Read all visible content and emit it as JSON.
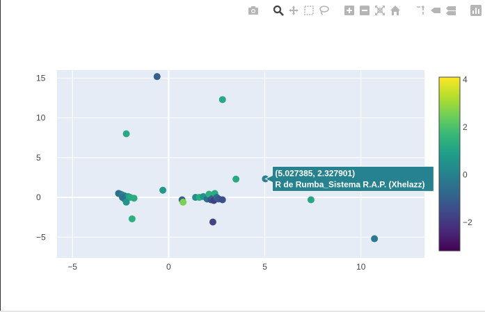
{
  "modebar": {
    "buttons": [
      {
        "name": "camera-icon",
        "title": "Download plot as a png"
      },
      {
        "name": "zoom-icon",
        "title": "Zoom"
      },
      {
        "name": "pan-icon",
        "title": "Pan"
      },
      {
        "name": "box-select-icon",
        "title": "Box Select"
      },
      {
        "name": "lasso-select-icon",
        "title": "Lasso Select"
      },
      {
        "name": "zoom-in-icon",
        "title": "Zoom in"
      },
      {
        "name": "zoom-out-icon",
        "title": "Zoom out"
      },
      {
        "name": "autoscale-icon",
        "title": "Autoscale"
      },
      {
        "name": "home-icon",
        "title": "Reset axes"
      },
      {
        "name": "spike-lines-icon",
        "title": "Toggle Spike Lines"
      },
      {
        "name": "hover-closest-icon",
        "title": "Show closest data on hover"
      },
      {
        "name": "hover-compare-icon",
        "title": "Compare data on hover"
      },
      {
        "name": "plotly-logo-icon",
        "title": "Produced with Plotly"
      }
    ]
  },
  "chart_data": {
    "type": "scatter",
    "xlim": [
      -5.8,
      13.3
    ],
    "ylim": [
      -7.6,
      16.0
    ],
    "x_ticks": [
      -5,
      0,
      5,
      10
    ],
    "y_ticks": [
      -5,
      0,
      5,
      10,
      15
    ],
    "grid": true,
    "colorscale": "viridis",
    "colorbar": {
      "range": [
        -3.2,
        4.1
      ],
      "ticks": [
        -2,
        0,
        2,
        4
      ],
      "stops": [
        "#440154",
        "#482878",
        "#3e4989",
        "#31688e",
        "#26828e",
        "#1f9e89",
        "#35b779",
        "#6ece58",
        "#b5de2b",
        "#fde725"
      ]
    },
    "points": [
      {
        "x": -0.6,
        "y": 15.2,
        "c": -1.0
      },
      {
        "x": 2.8,
        "y": 12.3,
        "c": 1.2
      },
      {
        "x": -2.2,
        "y": 8.0,
        "c": 1.2
      },
      {
        "x": 3.5,
        "y": 2.3,
        "c": 1.2
      },
      {
        "x": 5.03,
        "y": 2.33,
        "c": 0.0
      },
      {
        "x": -0.3,
        "y": 0.9,
        "c": 0.7
      },
      {
        "x": -2.6,
        "y": 0.5,
        "c": -0.7
      },
      {
        "x": -2.5,
        "y": 0.4,
        "c": -0.5
      },
      {
        "x": -2.4,
        "y": 0.3,
        "c": 0.0
      },
      {
        "x": -2.3,
        "y": 0.2,
        "c": 0.3
      },
      {
        "x": -2.2,
        "y": 0.1,
        "c": -0.2
      },
      {
        "x": -2.1,
        "y": 0.1,
        "c": 0.9
      },
      {
        "x": -2.0,
        "y": 0.0,
        "c": 1.2
      },
      {
        "x": -2.3,
        "y": -0.2,
        "c": 1.0
      },
      {
        "x": -2.4,
        "y": 0.0,
        "c": -0.4
      },
      {
        "x": -2.2,
        "y": -0.6,
        "c": 0.6
      },
      {
        "x": -1.8,
        "y": -0.1,
        "c": 1.3
      },
      {
        "x": -1.9,
        "y": -2.7,
        "c": 1.4
      },
      {
        "x": 0.7,
        "y": -0.3,
        "c": -1.0
      },
      {
        "x": 0.75,
        "y": -0.6,
        "c": 2.6
      },
      {
        "x": 1.4,
        "y": 0.0,
        "c": 0.4
      },
      {
        "x": 1.6,
        "y": 0.0,
        "c": 1.3
      },
      {
        "x": 1.8,
        "y": 0.1,
        "c": 0.6
      },
      {
        "x": 2.0,
        "y": -0.2,
        "c": -0.6
      },
      {
        "x": 2.1,
        "y": 0.4,
        "c": 1.4
      },
      {
        "x": 2.2,
        "y": -0.3,
        "c": -1.4
      },
      {
        "x": 2.3,
        "y": -0.1,
        "c": -1.0
      },
      {
        "x": 2.35,
        "y": -0.4,
        "c": -1.8
      },
      {
        "x": 2.4,
        "y": 0.5,
        "c": 1.3
      },
      {
        "x": 2.5,
        "y": 0.0,
        "c": -0.8
      },
      {
        "x": 2.6,
        "y": -0.2,
        "c": -1.2
      },
      {
        "x": 2.8,
        "y": -0.3,
        "c": -1.4
      },
      {
        "x": 2.3,
        "y": -3.1,
        "c": -1.7
      },
      {
        "x": 7.4,
        "y": -0.3,
        "c": 1.1
      },
      {
        "x": 10.7,
        "y": -5.2,
        "c": -0.2
      }
    ],
    "hover": {
      "point_index": 4,
      "coords_text": "(5.027385, 2.327901)",
      "label_text": "R de Rumba_Sistema R.A.P. (Xhelazz)",
      "bg_color": "#26828e"
    }
  }
}
